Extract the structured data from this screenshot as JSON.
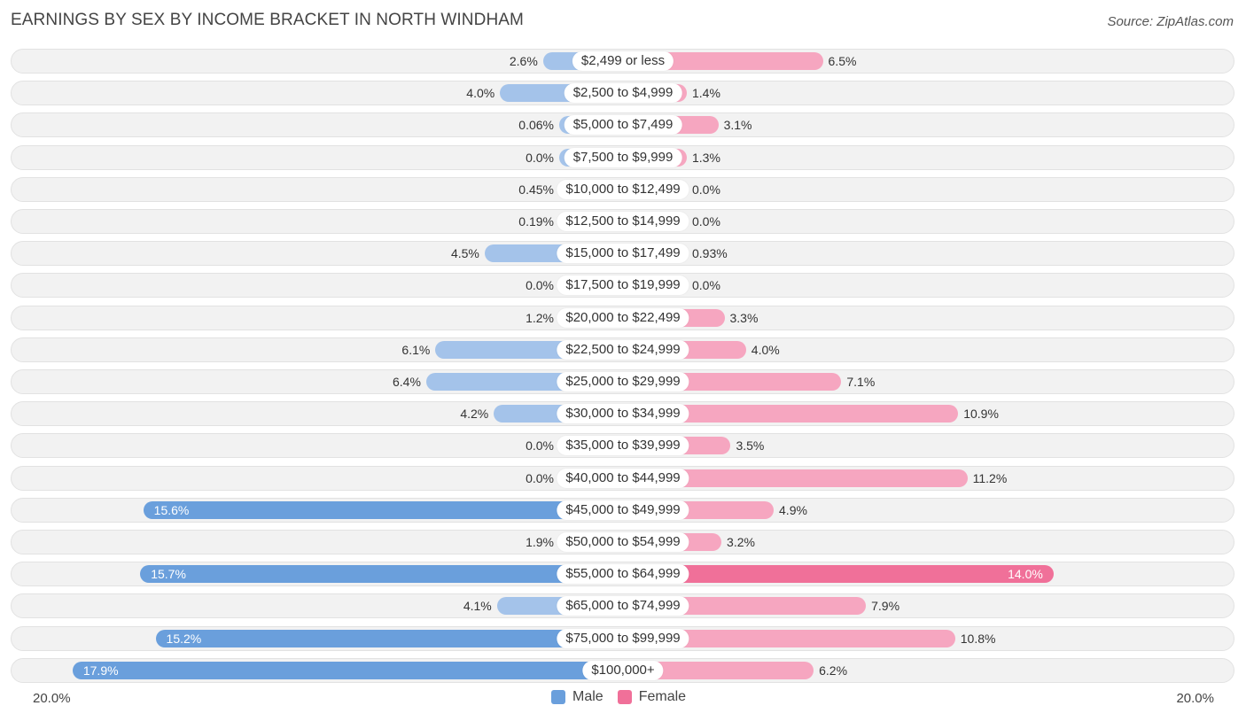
{
  "title": "EARNINGS BY SEX BY INCOME BRACKET IN NORTH WINDHAM",
  "source": "Source: ZipAtlas.com",
  "colors": {
    "male_light": "#a4c3ea",
    "male_dark": "#6a9fdc",
    "female_light": "#f6a6c0",
    "female_dark": "#f07099"
  },
  "chart_data": {
    "type": "bar",
    "orientation": "horizontal-diverging",
    "title": "EARNINGS BY SEX BY INCOME BRACKET IN NORTH WINDHAM",
    "axis_left_label": "20.0%",
    "axis_right_label": "20.0%",
    "xlim": [
      -20,
      20
    ],
    "legend": [
      "Male",
      "Female"
    ],
    "categories": [
      "$2,499 or less",
      "$2,500 to $4,999",
      "$5,000 to $7,499",
      "$7,500 to $9,999",
      "$10,000 to $12,499",
      "$12,500 to $14,999",
      "$15,000 to $17,499",
      "$17,500 to $19,999",
      "$20,000 to $22,499",
      "$22,500 to $24,999",
      "$25,000 to $29,999",
      "$30,000 to $34,999",
      "$35,000 to $39,999",
      "$40,000 to $44,999",
      "$45,000 to $49,999",
      "$50,000 to $54,999",
      "$55,000 to $64,999",
      "$65,000 to $74,999",
      "$75,000 to $99,999",
      "$100,000+"
    ],
    "series": [
      {
        "name": "Male",
        "values": [
          2.6,
          4.0,
          0.06,
          0.0,
          0.45,
          0.19,
          4.5,
          0.0,
          1.2,
          6.1,
          6.4,
          4.2,
          0.0,
          0.0,
          15.6,
          1.9,
          15.7,
          4.1,
          15.2,
          17.9
        ],
        "labels": [
          "2.6%",
          "4.0%",
          "0.06%",
          "0.0%",
          "0.45%",
          "0.19%",
          "4.5%",
          "0.0%",
          "1.2%",
          "6.1%",
          "6.4%",
          "4.2%",
          "0.0%",
          "0.0%",
          "15.6%",
          "1.9%",
          "15.7%",
          "4.1%",
          "15.2%",
          "17.9%"
        ]
      },
      {
        "name": "Female",
        "values": [
          6.5,
          1.4,
          3.1,
          1.3,
          0.0,
          0.0,
          0.93,
          0.0,
          3.3,
          4.0,
          7.1,
          10.9,
          3.5,
          11.2,
          4.9,
          3.2,
          14.0,
          7.9,
          10.8,
          6.2
        ],
        "labels": [
          "6.5%",
          "1.4%",
          "3.1%",
          "1.3%",
          "0.0%",
          "0.0%",
          "0.93%",
          "0.0%",
          "3.3%",
          "4.0%",
          "7.1%",
          "10.9%",
          "3.5%",
          "11.2%",
          "4.9%",
          "3.2%",
          "14.0%",
          "7.9%",
          "10.8%",
          "6.2%"
        ]
      }
    ]
  }
}
